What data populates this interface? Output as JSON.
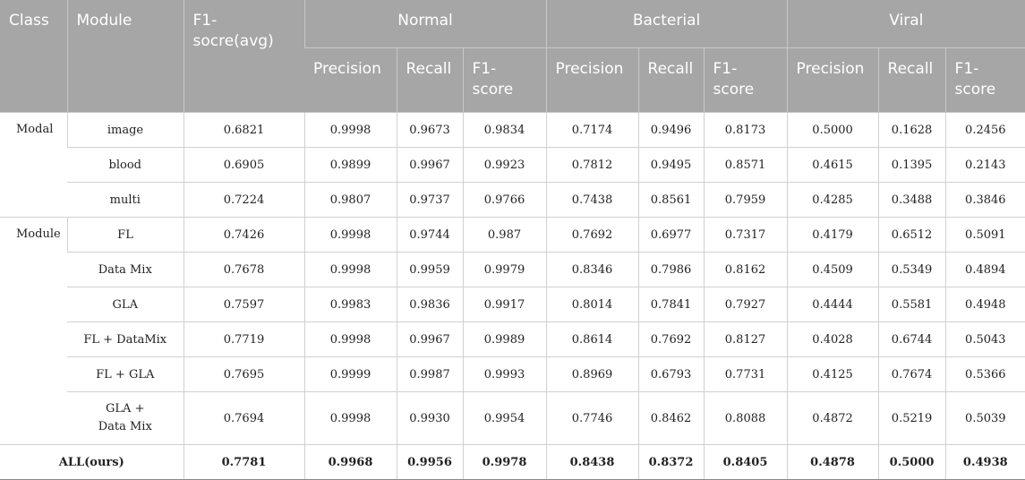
{
  "header": {
    "class": "Class",
    "module": "Module",
    "f1avg": "F1-socre(avg)",
    "groups": [
      "Normal",
      "Bacterial",
      "Viral"
    ],
    "subcolumns": [
      "Precision",
      "Recall",
      "F1-score"
    ]
  },
  "sections": [
    {
      "class": "Modal",
      "rows": [
        {
          "module": "image",
          "values": [
            "0.6821",
            "0.9998",
            "0.9673",
            "0.9834",
            "0.7174",
            "0.9496",
            "0.8173",
            "0.5000",
            "0.1628",
            "0.2456"
          ]
        },
        {
          "module": "blood",
          "values": [
            "0.6905",
            "0.9899",
            "0.9967",
            "0.9923",
            "0.7812",
            "0.9495",
            "0.8571",
            "0.4615",
            "0.1395",
            "0.2143"
          ]
        },
        {
          "module": "multi",
          "values": [
            "0.7224",
            "0.9807",
            "0.9737",
            "0.9766",
            "0.7438",
            "0.8561",
            "0.7959",
            "0.4285",
            "0.3488",
            "0.3846"
          ]
        }
      ]
    },
    {
      "class": "Module",
      "rows": [
        {
          "module": "FL",
          "values": [
            "0.7426",
            "0.9998",
            "0.9744",
            "0.987",
            "0.7692",
            "0.6977",
            "0.7317",
            "0.4179",
            "0.6512",
            "0.5091"
          ]
        },
        {
          "module": "Data Mix",
          "values": [
            "0.7678",
            "0.9998",
            "0.9959",
            "0.9979",
            "0.8346",
            "0.7986",
            "0.8162",
            "0.4509",
            "0.5349",
            "0.4894"
          ]
        },
        {
          "module": "GLA",
          "values": [
            "0.7597",
            "0.9983",
            "0.9836",
            "0.9917",
            "0.8014",
            "0.7841",
            "0.7927",
            "0.4444",
            "0.5581",
            "0.4948"
          ]
        },
        {
          "module": "FL + DataMix",
          "values": [
            "0.7719",
            "0.9998",
            "0.9967",
            "0.9989",
            "0.8614",
            "0.7692",
            "0.8127",
            "0.4028",
            "0.6744",
            "0.5043"
          ]
        },
        {
          "module": "FL + GLA",
          "values": [
            "0.7695",
            "0.9999",
            "0.9987",
            "0.9993",
            "0.8969",
            "0.6793",
            "0.7731",
            "0.4125",
            "0.7674",
            "0.5366"
          ]
        },
        {
          "module": "GLA + Data Mix",
          "values": [
            "0.7694",
            "0.9998",
            "0.9930",
            "0.9954",
            "0.7746",
            "0.8462",
            "0.8088",
            "0.4872",
            "0.5219",
            "0.5039"
          ]
        }
      ]
    }
  ],
  "total": {
    "label": "ALL(ours)",
    "values": [
      "0.7781",
      "0.9968",
      "0.9956",
      "0.9978",
      "0.8438",
      "0.8372",
      "0.8405",
      "0.4878",
      "0.5000",
      "0.4938"
    ]
  }
}
